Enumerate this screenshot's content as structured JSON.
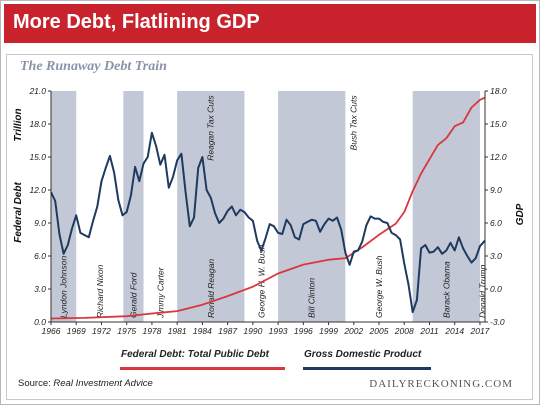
{
  "header": {
    "title": "More Debt, Flatlining GDP"
  },
  "subtitle": "The Runaway Debt Train",
  "source": {
    "prefix": "Source: ",
    "name": "Real Investment Advice"
  },
  "brand": "DAILYRECKONING.COM",
  "colors": {
    "banner": "#c8232c",
    "debt": "#d9363e",
    "gdp": "#1e3a5f",
    "shade": "#c3c8d6"
  },
  "chart_data": {
    "type": "line",
    "title": "The Runaway Debt Train",
    "x_ticks": [
      "1966",
      "1969",
      "1972",
      "1975",
      "1978",
      "1981",
      "1984",
      "1987",
      "1990",
      "1993",
      "1996",
      "1999",
      "2002",
      "2005",
      "2008",
      "2011",
      "2014",
      "2017"
    ],
    "xlim": [
      1966,
      2017.6
    ],
    "left_axis": {
      "title": "Federal Debt",
      "unit": "Trillion",
      "ticks": [
        "0.0",
        "3.0",
        "6.0",
        "9.0",
        "12.0",
        "15.0",
        "18.0",
        "21.0"
      ],
      "ylim": [
        0,
        21
      ]
    },
    "right_axis": {
      "title": "GDP",
      "ticks": [
        "-3.0",
        "0.0",
        "3.0",
        "6.0",
        "9.0",
        "12.0",
        "15.0",
        "18.0"
      ],
      "ylim": [
        -3,
        18
      ]
    },
    "presidencies": [
      {
        "name": "Lyndon Johnson",
        "start": 1966,
        "end": 1969,
        "shaded": true
      },
      {
        "name": "Richard Nixon",
        "start": 1969,
        "end": 1974.6,
        "shaded": false
      },
      {
        "name": "Gerald Ford",
        "start": 1974.6,
        "end": 1977,
        "shaded": true
      },
      {
        "name": "Jimmy Carter",
        "start": 1977,
        "end": 1981,
        "shaded": false
      },
      {
        "name": "Ronald Reagan",
        "start": 1981,
        "end": 1989,
        "shaded": true
      },
      {
        "name": "George H. W. Bush",
        "start": 1989,
        "end": 1993,
        "shaded": false
      },
      {
        "name": "Bill Clinton",
        "start": 1993,
        "end": 2001,
        "shaded": true
      },
      {
        "name": "George W. Bush",
        "start": 2001,
        "end": 2009,
        "shaded": false
      },
      {
        "name": "Barack Obama",
        "start": 2009,
        "end": 2017,
        "shaded": true
      },
      {
        "name": "Donald Trump",
        "start": 2017,
        "end": 2017.6,
        "shaded": false
      }
    ],
    "annotations": [
      {
        "text": "Reagan Tax Cuts",
        "x": 1985.3,
        "y": 20.6
      },
      {
        "text": "Bush Tax Cuts",
        "x": 2002.3,
        "y": 20.6
      }
    ],
    "series": [
      {
        "name": "Federal Debt: Total Public Debt",
        "axis": "left",
        "points": [
          [
            1966,
            0.32
          ],
          [
            1970,
            0.37
          ],
          [
            1975,
            0.53
          ],
          [
            1978,
            0.77
          ],
          [
            1981,
            0.99
          ],
          [
            1984,
            1.57
          ],
          [
            1987,
            2.35
          ],
          [
            1990,
            3.21
          ],
          [
            1993,
            4.41
          ],
          [
            1996,
            5.22
          ],
          [
            1999,
            5.66
          ],
          [
            2001,
            5.8
          ],
          [
            2003,
            6.78
          ],
          [
            2005,
            7.93
          ],
          [
            2007,
            8.95
          ],
          [
            2008,
            10.0
          ],
          [
            2009,
            11.9
          ],
          [
            2010,
            13.5
          ],
          [
            2011,
            14.8
          ],
          [
            2012,
            16.1
          ],
          [
            2013,
            16.7
          ],
          [
            2014,
            17.8
          ],
          [
            2015,
            18.15
          ],
          [
            2016,
            19.5
          ],
          [
            2017,
            20.2
          ],
          [
            2017.6,
            20.4
          ]
        ]
      },
      {
        "name": "Gross Domestic Product",
        "axis": "right",
        "points": [
          [
            1966,
            8.8
          ],
          [
            1966.5,
            8.0
          ],
          [
            1967,
            5.0
          ],
          [
            1967.5,
            3.2
          ],
          [
            1968,
            4.0
          ],
          [
            1968.5,
            5.5
          ],
          [
            1969,
            6.7
          ],
          [
            1969.5,
            5.1
          ],
          [
            1970,
            4.9
          ],
          [
            1970.5,
            4.7
          ],
          [
            1971,
            6.2
          ],
          [
            1971.5,
            7.5
          ],
          [
            1972,
            9.8
          ],
          [
            1972.5,
            11.0
          ],
          [
            1973,
            12.1
          ],
          [
            1973.5,
            10.6
          ],
          [
            1974,
            8.1
          ],
          [
            1974.5,
            6.7
          ],
          [
            1975,
            7.0
          ],
          [
            1975.5,
            8.5
          ],
          [
            1976,
            11.1
          ],
          [
            1976.5,
            9.8
          ],
          [
            1977,
            11.4
          ],
          [
            1977.5,
            12.0
          ],
          [
            1978,
            14.2
          ],
          [
            1978.5,
            13.0
          ],
          [
            1979,
            11.3
          ],
          [
            1979.5,
            12.2
          ],
          [
            1980,
            9.2
          ],
          [
            1980.5,
            10.2
          ],
          [
            1981,
            11.7
          ],
          [
            1981.5,
            12.3
          ],
          [
            1982,
            8.8
          ],
          [
            1982.5,
            5.7
          ],
          [
            1983,
            6.5
          ],
          [
            1983.5,
            11.0
          ],
          [
            1984,
            12.0
          ],
          [
            1984.5,
            9.0
          ],
          [
            1985,
            8.3
          ],
          [
            1985.5,
            6.9
          ],
          [
            1986,
            6.0
          ],
          [
            1986.5,
            6.4
          ],
          [
            1987,
            7.1
          ],
          [
            1987.5,
            7.5
          ],
          [
            1988,
            6.7
          ],
          [
            1988.5,
            7.2
          ],
          [
            1989,
            7.0
          ],
          [
            1989.5,
            6.5
          ],
          [
            1990,
            6.2
          ],
          [
            1990.5,
            4.4
          ],
          [
            1991,
            3.5
          ],
          [
            1991.5,
            4.6
          ],
          [
            1992,
            5.9
          ],
          [
            1992.5,
            5.7
          ],
          [
            1993,
            5.1
          ],
          [
            1993.5,
            5.0
          ],
          [
            1994,
            6.3
          ],
          [
            1994.5,
            5.8
          ],
          [
            1995,
            4.7
          ],
          [
            1995.5,
            4.5
          ],
          [
            1996,
            5.9
          ],
          [
            1996.5,
            6.1
          ],
          [
            1997,
            6.3
          ],
          [
            1997.5,
            6.2
          ],
          [
            1998,
            5.2
          ],
          [
            1998.5,
            5.9
          ],
          [
            1999,
            6.4
          ],
          [
            1999.5,
            6.2
          ],
          [
            2000,
            6.5
          ],
          [
            2000.5,
            5.4
          ],
          [
            2001,
            3.3
          ],
          [
            2001.5,
            2.2
          ],
          [
            2002,
            3.4
          ],
          [
            2002.5,
            3.5
          ],
          [
            2003,
            4.3
          ],
          [
            2003.5,
            5.8
          ],
          [
            2004,
            6.6
          ],
          [
            2004.5,
            6.4
          ],
          [
            2005,
            6.4
          ],
          [
            2005.5,
            6.1
          ],
          [
            2006,
            6.0
          ],
          [
            2006.5,
            5.1
          ],
          [
            2007,
            4.9
          ],
          [
            2007.5,
            4.5
          ],
          [
            2008,
            2.3
          ],
          [
            2008.5,
            0.4
          ],
          [
            2009,
            -2.1
          ],
          [
            2009.5,
            -1.0
          ],
          [
            2010,
            3.7
          ],
          [
            2010.5,
            4.0
          ],
          [
            2011,
            3.3
          ],
          [
            2011.5,
            3.4
          ],
          [
            2012,
            3.8
          ],
          [
            2012.5,
            3.2
          ],
          [
            2013,
            3.5
          ],
          [
            2013.5,
            4.2
          ],
          [
            2014,
            3.5
          ],
          [
            2014.5,
            4.7
          ],
          [
            2015,
            3.7
          ],
          [
            2015.5,
            3.0
          ],
          [
            2016,
            2.4
          ],
          [
            2016.5,
            2.8
          ],
          [
            2017,
            3.9
          ],
          [
            2017.6,
            4.4
          ]
        ]
      }
    ]
  }
}
